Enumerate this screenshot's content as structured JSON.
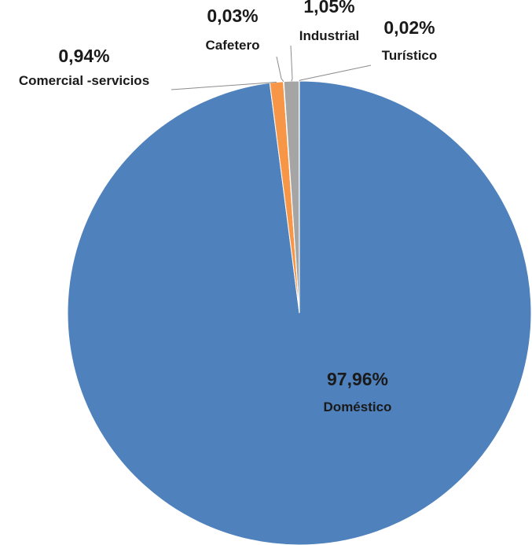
{
  "chart_data": {
    "type": "pie",
    "title": "",
    "slices": [
      {
        "category": "Doméstico",
        "value": 97.96,
        "label": "97,96%",
        "color": "#4f81bd"
      },
      {
        "category": "Comercial -servicios",
        "value": 0.94,
        "label": "0,94%",
        "color": "#f79646"
      },
      {
        "category": "Cafetero",
        "value": 0.03,
        "label": "0,03%",
        "color": "#4bacc6"
      },
      {
        "category": "Industrial",
        "value": 1.05,
        "label": "1,05%",
        "color": "#a5a5a5"
      },
      {
        "category": "Turístico",
        "value": 0.02,
        "label": "0,02%",
        "color": "#ffd966"
      }
    ],
    "legend": "none",
    "data_labels": "category and percentage"
  }
}
